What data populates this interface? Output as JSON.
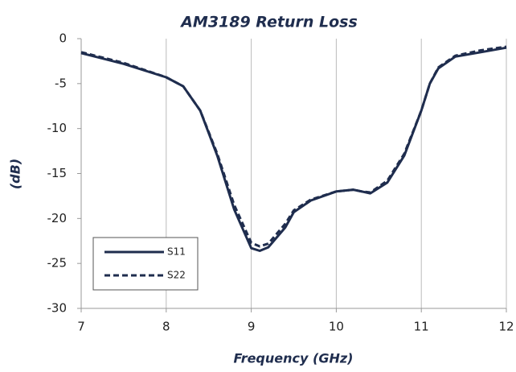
{
  "chart_data": {
    "type": "line",
    "title": "AM3189 Return Loss",
    "x_label": "Frequency (GHz)",
    "y_label": "(dB)",
    "x": [
      7,
      7.5,
      8,
      8.2,
      8.4,
      8.6,
      8.8,
      9.0,
      9.1,
      9.2,
      9.4,
      9.5,
      9.7,
      10.0,
      10.2,
      10.3,
      10.4,
      10.6,
      10.8,
      11.0,
      11.1,
      11.2,
      11.4,
      11.7,
      12
    ],
    "series": [
      {
        "name": "S11",
        "color": "#1f2d4e",
        "dash": "solid",
        "values": [
          -1.6,
          -2.8,
          -4.3,
          -5.3,
          -8,
          -13,
          -19,
          -23.3,
          -23.6,
          -23.2,
          -21,
          -19.3,
          -18,
          -17,
          -16.8,
          -17,
          -17.2,
          -16,
          -13,
          -8,
          -5,
          -3.3,
          -2,
          -1.5,
          -1.0
        ]
      },
      {
        "name": "S22",
        "color": "#1f2d4e",
        "dash": "dashed",
        "values": [
          -1.5,
          -2.7,
          -4.3,
          -5.3,
          -8,
          -12.8,
          -18.5,
          -22.7,
          -23.1,
          -22.8,
          -20.6,
          -19.1,
          -17.9,
          -17,
          -16.8,
          -17,
          -17.1,
          -15.8,
          -12.8,
          -8,
          -5,
          -3.2,
          -1.9,
          -1.3,
          -0.9
        ]
      }
    ],
    "xlim": [
      7,
      12
    ],
    "xticks": [
      7,
      8,
      9,
      10,
      11,
      12
    ],
    "ylim": [
      -30,
      0
    ],
    "yticks": [
      -30,
      -25,
      -20,
      -15,
      -10,
      -5,
      0
    ],
    "grid": "x",
    "legend": "lower left"
  }
}
